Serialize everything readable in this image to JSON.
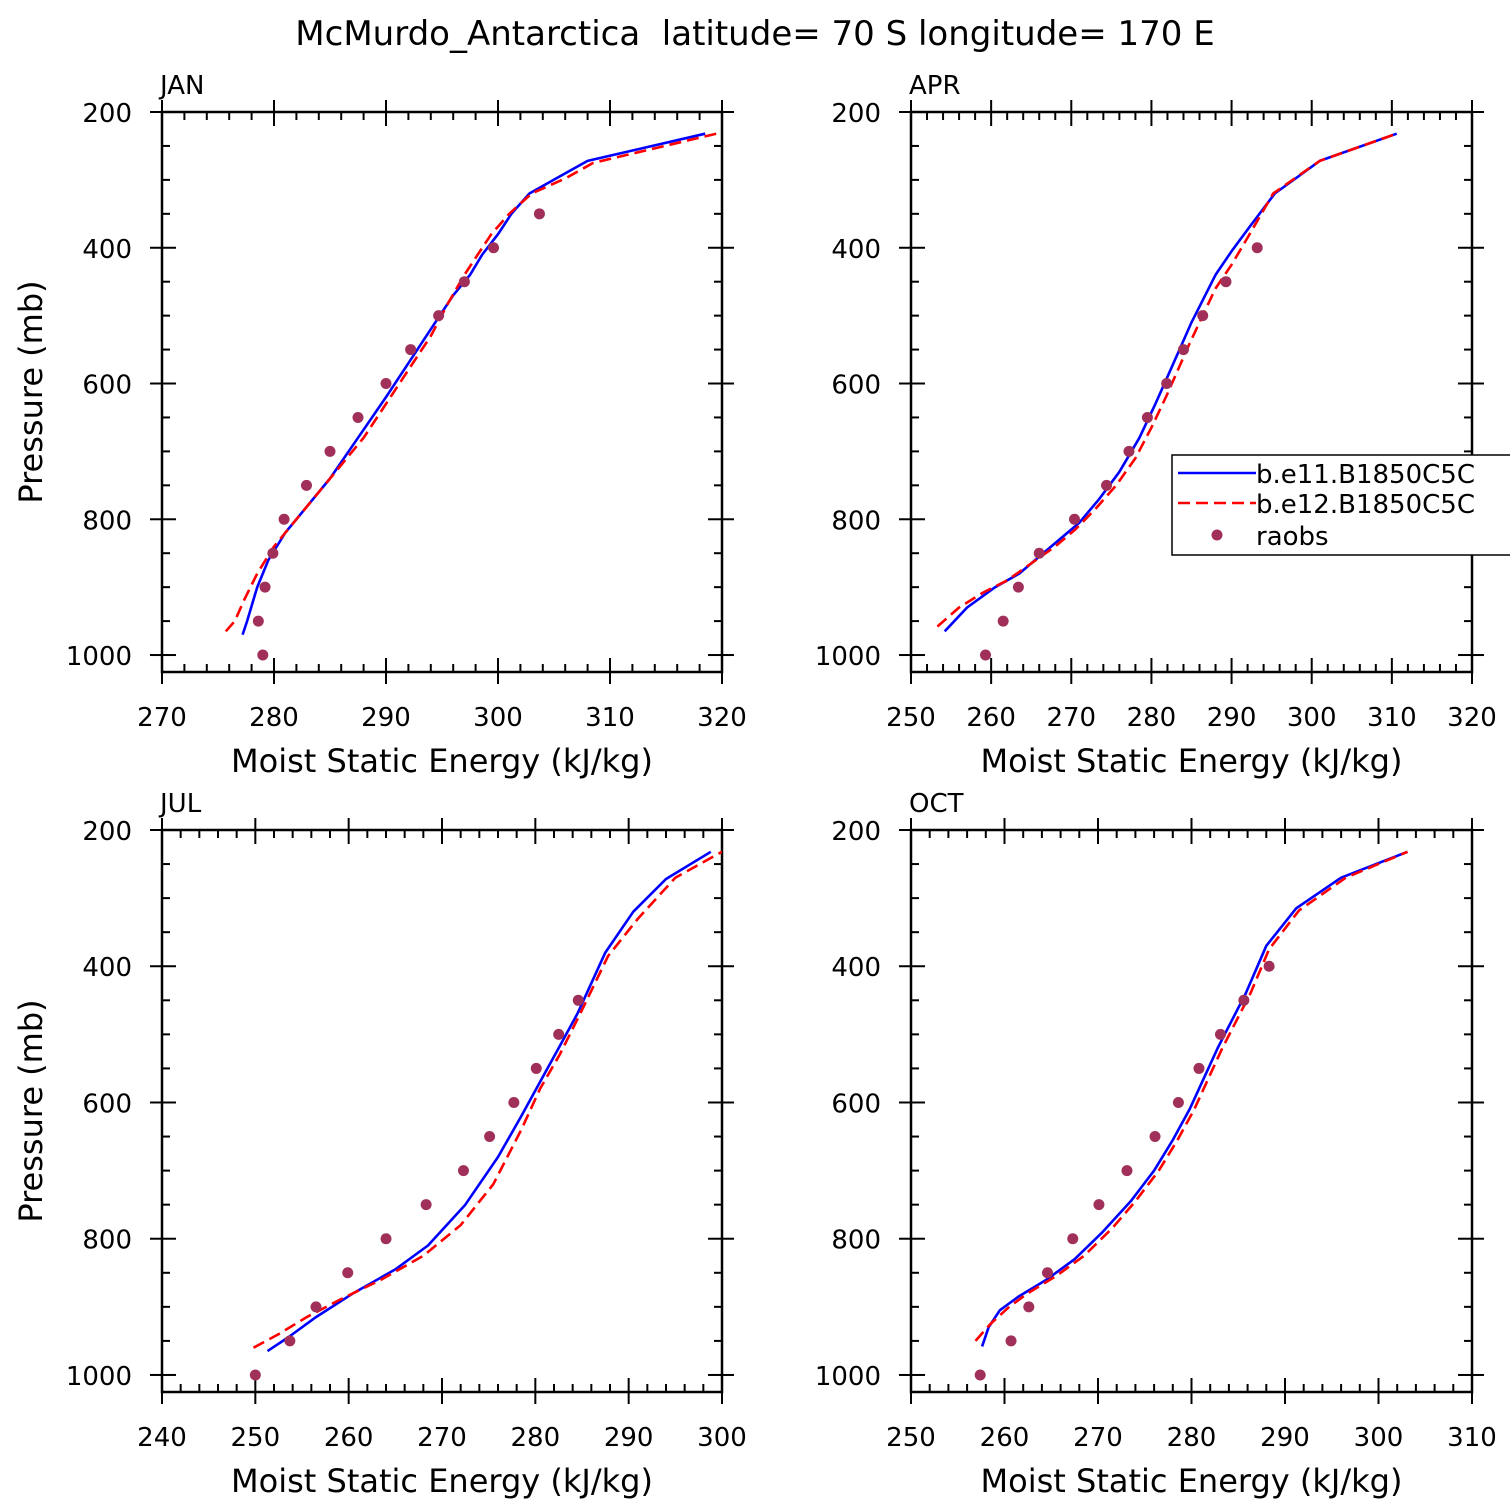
{
  "figure": {
    "title": "McMurdo_Antarctica  latitude= 70 S longitude= 170 E"
  },
  "colors": {
    "series1": "#0000ff",
    "series2": "#ff0000",
    "raobs": "#a0305a"
  },
  "chart_data": [
    {
      "type": "line",
      "panel_label": "JAN",
      "xlabel": "Moist Static Energy (kJ/kg)",
      "ylabel": "Pressure (mb)",
      "xlim": [
        270,
        320
      ],
      "ylim": [
        1025,
        200
      ],
      "y_reversed": true,
      "xticks": [
        270,
        280,
        290,
        300,
        310,
        320
      ],
      "yticks": [
        200,
        400,
        600,
        800,
        1000
      ],
      "legend": null,
      "series": [
        {
          "name": "b.e11.B1850C5C",
          "style": "solid",
          "points": [
            [
              277.2,
              970
            ],
            [
              277.6,
              950
            ],
            [
              278.5,
              900
            ],
            [
              279.5,
              860
            ],
            [
              281,
              820
            ],
            [
              283,
              780
            ],
            [
              285,
              740
            ],
            [
              287.5,
              680
            ],
            [
              290,
              620
            ],
            [
              292,
              570
            ],
            [
              294,
              520
            ],
            [
              296,
              470
            ],
            [
              297.5,
              440
            ],
            [
              298.6,
              410
            ],
            [
              300,
              380
            ],
            [
              301.2,
              350
            ],
            [
              302.8,
              320
            ],
            [
              305.5,
              295
            ],
            [
              308,
              272
            ],
            [
              318.5,
              232
            ]
          ]
        },
        {
          "name": "b.e12.B1850C5C",
          "style": "dashed",
          "points": [
            [
              275.7,
              965
            ],
            [
              276.5,
              950
            ],
            [
              277.3,
              920
            ],
            [
              278.5,
              880
            ],
            [
              280,
              840
            ],
            [
              282,
              800
            ],
            [
              284,
              760
            ],
            [
              286,
              720
            ],
            [
              288,
              680
            ],
            [
              290,
              630
            ],
            [
              292,
              580
            ],
            [
              294,
              530
            ],
            [
              295.6,
              480
            ],
            [
              297,
              440
            ],
            [
              298.2,
              410
            ],
            [
              299.4,
              380
            ],
            [
              301,
              350
            ],
            [
              303,
              320
            ],
            [
              306,
              298
            ],
            [
              308.5,
              275
            ],
            [
              319.5,
              232
            ]
          ]
        },
        {
          "name": "raobs",
          "style": "markers",
          "points": [
            [
              279,
              1000
            ],
            [
              278.6,
              950
            ],
            [
              279.2,
              900
            ],
            [
              279.9,
              850
            ],
            [
              280.9,
              800
            ],
            [
              282.9,
              750
            ],
            [
              285,
              700
            ],
            [
              287.5,
              650
            ],
            [
              290,
              600
            ],
            [
              292.2,
              550
            ],
            [
              294.7,
              500
            ],
            [
              297,
              450
            ],
            [
              299.6,
              400
            ],
            [
              303.7,
              350
            ]
          ]
        }
      ]
    },
    {
      "type": "line",
      "panel_label": "APR",
      "xlabel": "Moist Static Energy (kJ/kg)",
      "ylabel": "",
      "xlim": [
        250,
        320
      ],
      "ylim": [
        1025,
        200
      ],
      "y_reversed": true,
      "xticks": [
        250,
        260,
        270,
        280,
        290,
        300,
        310,
        320
      ],
      "yticks": [
        200,
        400,
        600,
        800,
        1000
      ],
      "legend": {
        "position": "right",
        "entries": [
          "b.e11.B1850C5C",
          "b.e12.B1850C5C",
          "raobs"
        ]
      },
      "series": [
        {
          "name": "b.e11.B1850C5C",
          "style": "solid",
          "points": [
            [
              254.2,
              965
            ],
            [
              257,
              930
            ],
            [
              260.5,
              900
            ],
            [
              263.5,
              880
            ],
            [
              266,
              855
            ],
            [
              268.5,
              830
            ],
            [
              271,
              805
            ],
            [
              273.5,
              770
            ],
            [
              276,
              730
            ],
            [
              278.5,
              680
            ],
            [
              280.5,
              630
            ],
            [
              282,
              590
            ],
            [
              283.5,
              550
            ],
            [
              285,
              510
            ],
            [
              286.5,
              475
            ],
            [
              288,
              440
            ],
            [
              290,
              405
            ],
            [
              292.2,
              370
            ],
            [
              295.4,
              320
            ],
            [
              301,
              272
            ],
            [
              310.6,
              232
            ]
          ]
        },
        {
          "name": "b.e12.B1850C5C",
          "style": "dashed",
          "points": [
            [
              253.3,
              958
            ],
            [
              256,
              930
            ],
            [
              259,
              908
            ],
            [
              262,
              890
            ],
            [
              265,
              865
            ],
            [
              268,
              840
            ],
            [
              270.5,
              815
            ],
            [
              273,
              785
            ],
            [
              275.6,
              750
            ],
            [
              278,
              710
            ],
            [
              280,
              665
            ],
            [
              281.8,
              620
            ],
            [
              283.3,
              580
            ],
            [
              284.8,
              540
            ],
            [
              286.4,
              500
            ],
            [
              288,
              460
            ],
            [
              290,
              425
            ],
            [
              292,
              385
            ],
            [
              295.2,
              320
            ],
            [
              301,
              272
            ],
            [
              310.6,
              232
            ]
          ]
        },
        {
          "name": "raobs",
          "style": "markers",
          "points": [
            [
              259.3,
              1000
            ],
            [
              261.5,
              950
            ],
            [
              263.4,
              900
            ],
            [
              266,
              850
            ],
            [
              270.4,
              800
            ],
            [
              274.4,
              750
            ],
            [
              277.2,
              700
            ],
            [
              279.5,
              650
            ],
            [
              281.9,
              600
            ],
            [
              284,
              550
            ],
            [
              286.4,
              500
            ],
            [
              289.3,
              450
            ],
            [
              293.2,
              400
            ]
          ]
        }
      ]
    },
    {
      "type": "line",
      "panel_label": "JUL",
      "xlabel": "Moist Static Energy (kJ/kg)",
      "ylabel": "Pressure (mb)",
      "xlim": [
        240,
        300
      ],
      "ylim": [
        1025,
        200
      ],
      "y_reversed": true,
      "xticks": [
        240,
        250,
        260,
        270,
        280,
        290,
        300
      ],
      "yticks": [
        200,
        400,
        600,
        800,
        1000
      ],
      "legend": null,
      "series": [
        {
          "name": "b.e11.B1850C5C",
          "style": "solid",
          "points": [
            [
              251.3,
              965
            ],
            [
              253.5,
              945
            ],
            [
              256.5,
              915
            ],
            [
              260.5,
              880
            ],
            [
              265,
              845
            ],
            [
              268.5,
              810
            ],
            [
              272.5,
              750
            ],
            [
              276,
              680
            ],
            [
              278.5,
              620
            ],
            [
              280.5,
              570
            ],
            [
              282.5,
              520
            ],
            [
              284.5,
              470
            ],
            [
              287.5,
              380
            ],
            [
              290.5,
              320
            ],
            [
              294,
              272
            ],
            [
              298.8,
              232
            ]
          ]
        },
        {
          "name": "b.e12.B1850C5C",
          "style": "dashed",
          "points": [
            [
              249.8,
              960
            ],
            [
              252.5,
              940
            ],
            [
              255.5,
              915
            ],
            [
              259,
              890
            ],
            [
              263.5,
              860
            ],
            [
              268,
              825
            ],
            [
              272,
              780
            ],
            [
              275.5,
              720
            ],
            [
              278.5,
              640
            ],
            [
              280.5,
              580
            ],
            [
              282.6,
              530
            ],
            [
              284.8,
              470
            ],
            [
              287.8,
              385
            ],
            [
              291,
              330
            ],
            [
              295,
              270
            ],
            [
              300,
              232
            ]
          ]
        },
        {
          "name": "raobs",
          "style": "markers",
          "points": [
            [
              250,
              1000
            ],
            [
              253.7,
              950
            ],
            [
              256.5,
              900
            ],
            [
              259.9,
              850
            ],
            [
              264,
              800
            ],
            [
              268.3,
              750
            ],
            [
              272.3,
              700
            ],
            [
              275.1,
              650
            ],
            [
              277.7,
              600
            ],
            [
              280.1,
              550
            ],
            [
              282.5,
              500
            ],
            [
              284.6,
              450
            ]
          ]
        }
      ]
    },
    {
      "type": "line",
      "panel_label": "OCT",
      "xlabel": "Moist Static Energy (kJ/kg)",
      "ylabel": "",
      "xlim": [
        250,
        310
      ],
      "ylim": [
        1025,
        200
      ],
      "y_reversed": true,
      "xticks": [
        250,
        260,
        270,
        280,
        290,
        300,
        310
      ],
      "yticks": [
        200,
        400,
        600,
        800,
        1000
      ],
      "legend": null,
      "series": [
        {
          "name": "b.e11.B1850C5C",
          "style": "solid",
          "points": [
            [
              257.6,
              958
            ],
            [
              258.3,
              930
            ],
            [
              259.5,
              905
            ],
            [
              261.5,
              885
            ],
            [
              264.5,
              860
            ],
            [
              267.5,
              830
            ],
            [
              270.5,
              790
            ],
            [
              273.5,
              745
            ],
            [
              276,
              700
            ],
            [
              278,
              655
            ],
            [
              279.8,
              610
            ],
            [
              281.3,
              565
            ],
            [
              282.8,
              520
            ],
            [
              284.3,
              480
            ],
            [
              285.8,
              440
            ],
            [
              288,
              370
            ],
            [
              291.2,
              315
            ],
            [
              296,
              270
            ],
            [
              303.1,
              232
            ]
          ]
        },
        {
          "name": "b.e12.B1850C5C",
          "style": "dashed",
          "points": [
            [
              256.9,
              950
            ],
            [
              258.5,
              925
            ],
            [
              260.5,
              900
            ],
            [
              262.5,
              880
            ],
            [
              265.5,
              855
            ],
            [
              268.5,
              825
            ],
            [
              271.5,
              785
            ],
            [
              274,
              745
            ],
            [
              276.5,
              700
            ],
            [
              278.5,
              655
            ],
            [
              280.3,
              610
            ],
            [
              281.8,
              565
            ],
            [
              283.3,
              520
            ],
            [
              284.8,
              480
            ],
            [
              286.3,
              440
            ],
            [
              288.3,
              375
            ],
            [
              291.5,
              318
            ],
            [
              296.5,
              270
            ],
            [
              303.1,
              232
            ]
          ]
        },
        {
          "name": "raobs",
          "style": "markers",
          "points": [
            [
              257.4,
              1000
            ],
            [
              260.7,
              950
            ],
            [
              262.6,
              900
            ],
            [
              264.6,
              850
            ],
            [
              267.3,
              800
            ],
            [
              270.1,
              750
            ],
            [
              273.1,
              700
            ],
            [
              276.1,
              650
            ],
            [
              278.6,
              600
            ],
            [
              280.8,
              550
            ],
            [
              283.1,
              500
            ],
            [
              285.6,
              450
            ],
            [
              288.3,
              400
            ]
          ]
        }
      ]
    }
  ]
}
